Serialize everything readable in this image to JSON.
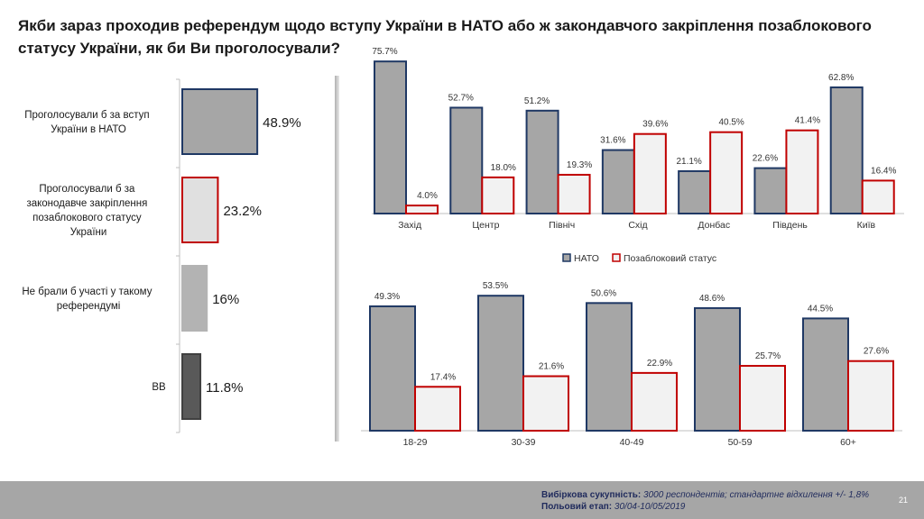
{
  "title": "Якби зараз проходив референдум щодо вступу України в НАТО або ж закондавчого закріплення позаблокового статусу України, як би Ви проголосували?",
  "colors": {
    "nato": "#1f3864",
    "neutral": "#c00000",
    "gray": "#a6a6a6",
    "light": "#f2f2f2"
  },
  "chart_data": [
    {
      "type": "bar",
      "orientation": "horizontal",
      "categories": [
        "Проголосували б за вступ України в НАТО",
        "Проголосували б за законодавче закріплення позаблокового статусу України",
        "Не брали б участі у такому референдумі",
        "ВВ"
      ],
      "values": [
        48.9,
        23.2,
        16,
        11.8
      ],
      "labels": [
        "48.9%",
        "23.2%",
        "16%",
        "11.8%"
      ]
    },
    {
      "type": "bar",
      "title": "",
      "categories": [
        "Захід",
        "Центр",
        "Північ",
        "Схід",
        "Донбас",
        "Південь",
        "Київ"
      ],
      "series": [
        {
          "name": "НАТО",
          "values": [
            75.7,
            52.7,
            51.2,
            31.6,
            21.1,
            22.6,
            62.8
          ],
          "labels": [
            "75.7%",
            "52.7%",
            "51.2%",
            "31.6%",
            "21.1%",
            "22.6%",
            "62.8%"
          ]
        },
        {
          "name": "Позаблоковий статус",
          "values": [
            4.0,
            18.0,
            19.3,
            39.6,
            40.5,
            41.4,
            16.4
          ],
          "labels": [
            "4.0%",
            "18.0%",
            "19.3%",
            "39.6%",
            "40.5%",
            "41.4%",
            "16.4%"
          ]
        }
      ],
      "ylim": [
        0,
        80
      ]
    },
    {
      "type": "bar",
      "categories": [
        "18-29",
        "30-39",
        "40-49",
        "50-59",
        "60+"
      ],
      "series": [
        {
          "name": "НАТО",
          "values": [
            49.3,
            53.5,
            50.6,
            48.6,
            44.5
          ],
          "labels": [
            "49.3%",
            "53.5%",
            "50.6%",
            "48.6%",
            "44.5%"
          ]
        },
        {
          "name": "Позаблоковий статус",
          "values": [
            17.4,
            21.6,
            22.9,
            25.7,
            27.6
          ],
          "labels": [
            "17.4%",
            "21.6%",
            "22.9%",
            "25.7%",
            "27.6%"
          ]
        }
      ],
      "ylim": [
        0,
        60
      ]
    }
  ],
  "legend": {
    "nato": "НАТО",
    "neutral": "Позаблоковий статус"
  },
  "footer": {
    "sample_label": "Вибіркова сукупність:",
    "sample_value": "3000 респондентів; стандартне відхилення +/- 1,8%",
    "field_label": "Польовий етап:",
    "field_value": "30/04-10/05/2019",
    "page": "21"
  }
}
